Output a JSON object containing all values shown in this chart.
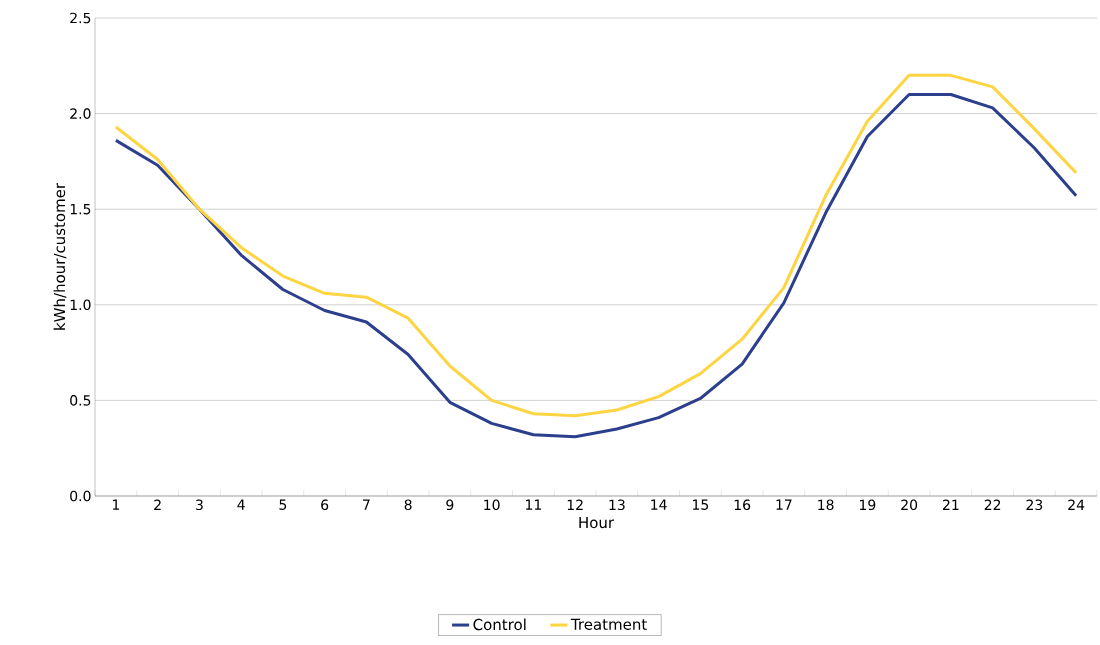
{
  "chart_data": {
    "type": "line",
    "xlabel": "Hour",
    "ylabel": "kWh/hour/customer",
    "categories": [
      "1",
      "2",
      "3",
      "4",
      "5",
      "6",
      "7",
      "8",
      "9",
      "10",
      "11",
      "12",
      "13",
      "14",
      "15",
      "16",
      "17",
      "18",
      "19",
      "20",
      "21",
      "22",
      "23",
      "24"
    ],
    "series": [
      {
        "name": "Control",
        "color": "#2b3f8c",
        "values": [
          1.86,
          1.73,
          1.5,
          1.26,
          1.08,
          0.97,
          0.91,
          0.74,
          0.49,
          0.38,
          0.32,
          0.31,
          0.35,
          0.41,
          0.51,
          0.69,
          1.01,
          1.48,
          1.88,
          2.1,
          2.1,
          2.03,
          1.82,
          1.57
        ]
      },
      {
        "name": "Treatment",
        "color": "#fdd441",
        "values": [
          1.93,
          1.76,
          1.5,
          1.3,
          1.15,
          1.06,
          1.04,
          0.93,
          0.68,
          0.5,
          0.43,
          0.42,
          0.45,
          0.52,
          0.64,
          0.82,
          1.09,
          1.57,
          1.96,
          2.2,
          2.2,
          2.14,
          1.92,
          1.69
        ]
      }
    ],
    "ylim": [
      0,
      2.5
    ],
    "yticks": [
      {
        "value": 0,
        "label": "0.0"
      },
      {
        "value": 0.5,
        "label": "0.5"
      },
      {
        "value": 1,
        "label": "1.0"
      },
      {
        "value": 1.5,
        "label": "1.5"
      },
      {
        "value": 2,
        "label": "2.0"
      },
      {
        "value": 2.5,
        "label": "2.5"
      }
    ],
    "grid": "y",
    "legend": "bottom"
  }
}
